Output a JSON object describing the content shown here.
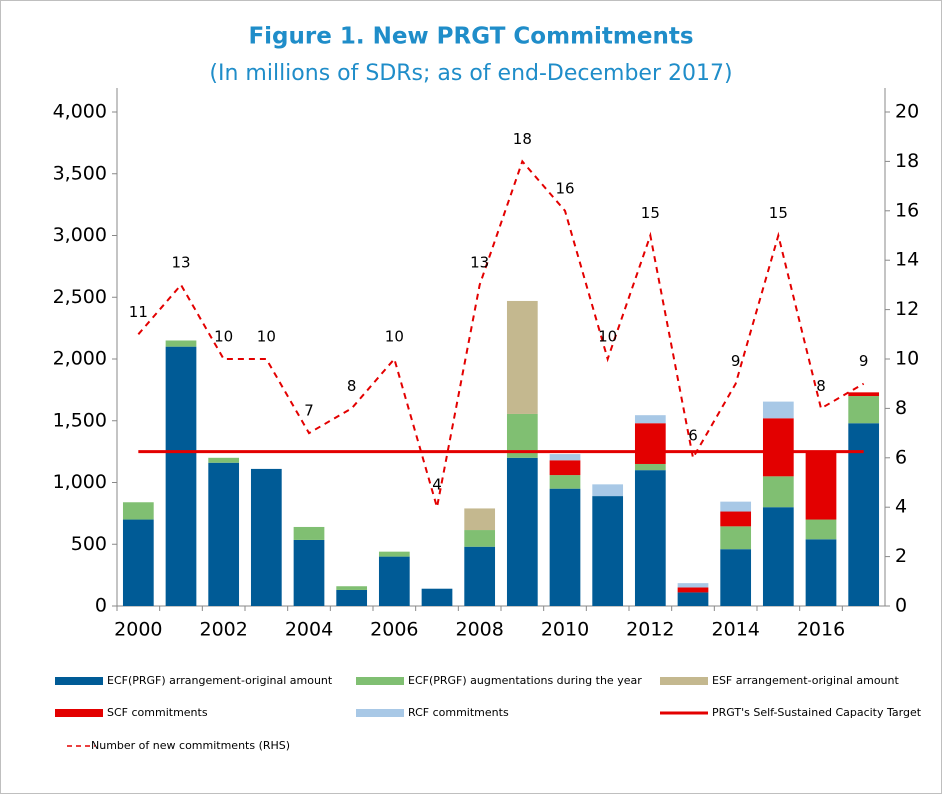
{
  "chart_data": {
    "type": "bar",
    "stacked": true,
    "title": "Figure 1. New PRGT Commitments",
    "subtitle": "(In millions of SDRs; as of end-December 2017)",
    "categories": [
      "2000",
      null,
      "2002",
      null,
      "2004",
      null,
      "2006",
      null,
      "2008",
      null,
      "2010",
      null,
      "2012",
      null,
      "2014",
      null,
      "2016",
      null
    ],
    "series": [
      {
        "name": "ECF(PRGF) arrangement-original amount",
        "type": "bar",
        "color": "#005b96",
        "values": [
          700,
          2100,
          1160,
          1110,
          535,
          130,
          400,
          140,
          480,
          1200,
          950,
          890,
          1100,
          110,
          460,
          800,
          540,
          1480
        ]
      },
      {
        "name": "ECF(PRGF) augmentations during the year",
        "type": "bar",
        "color": "#80bf72",
        "values": [
          140,
          50,
          40,
          0,
          105,
          30,
          40,
          0,
          135,
          355,
          110,
          0,
          50,
          0,
          185,
          250,
          160,
          220
        ]
      },
      {
        "name": "ESF arrangement-original amount",
        "type": "bar",
        "color": "#c4b88f",
        "values": [
          0,
          0,
          0,
          0,
          0,
          0,
          0,
          0,
          175,
          915,
          0,
          0,
          0,
          0,
          0,
          0,
          0,
          0
        ]
      },
      {
        "name": "SCF commitments",
        "type": "bar",
        "color": "#e30000",
        "values": [
          0,
          0,
          0,
          0,
          0,
          0,
          0,
          0,
          0,
          0,
          120,
          0,
          330,
          40,
          120,
          470,
          550,
          30
        ]
      },
      {
        "name": "RCF commitments",
        "type": "bar",
        "color": "#a8c8e6",
        "values": [
          0,
          0,
          0,
          0,
          0,
          0,
          0,
          0,
          0,
          0,
          50,
          95,
          65,
          35,
          80,
          135,
          0,
          0
        ]
      },
      {
        "name": "PRGT's Self-Sustained Capacity Target",
        "type": "line",
        "color": "#e30000",
        "values": [
          1250,
          1250,
          1250,
          1250,
          1250,
          1250,
          1250,
          1250,
          1250,
          1250,
          1250,
          1250,
          1250,
          1250,
          1250,
          1250,
          1250,
          1250
        ]
      },
      {
        "name": "Number of new commitments (RHS)",
        "type": "line",
        "dashed": true,
        "axis": "y2",
        "color": "#e30000",
        "data_labels": true,
        "values": [
          11,
          13,
          10,
          10,
          7,
          8,
          10,
          4,
          13,
          18,
          16,
          10,
          15,
          6,
          9,
          15,
          8,
          9
        ]
      }
    ],
    "ylim": [
      0,
      4000
    ],
    "yticks": [
      {
        "value": 0,
        "label": "0"
      },
      {
        "value": 500,
        "label": "500"
      },
      {
        "value": 1000,
        "label": "1,000"
      },
      {
        "value": 1500,
        "label": "1,500"
      },
      {
        "value": 2000,
        "label": "2,000"
      },
      {
        "value": 2500,
        "label": "2,500"
      },
      {
        "value": 3000,
        "label": "3,000"
      },
      {
        "value": 3500,
        "label": "3,500"
      },
      {
        "value": 4000,
        "label": "4,000"
      }
    ],
    "y2lim": [
      0,
      20
    ],
    "y2ticks": [
      0,
      2,
      4,
      6,
      8,
      10,
      12,
      14,
      16,
      18,
      20
    ],
    "grid": false,
    "legend": "bottom"
  }
}
